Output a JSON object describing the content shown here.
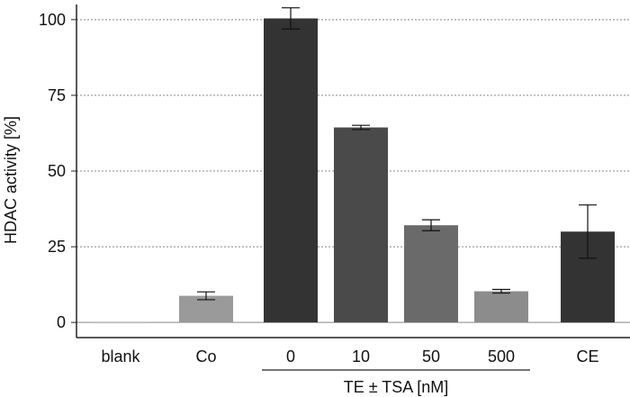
{
  "chart_data": {
    "type": "bar",
    "ylabel": "HDAC activity [%]",
    "ylim": [
      -5,
      105
    ],
    "yticks": [
      "0",
      "25",
      "50",
      "75",
      "100"
    ],
    "grid": "horizontal dotted",
    "categories": [
      "blank",
      "Co",
      "0",
      "10",
      "50",
      "500",
      "CE"
    ],
    "values": [
      0,
      8.8,
      100.4,
      64.4,
      32.1,
      10.3,
      30.0
    ],
    "errors": [
      0,
      1.3,
      3.5,
      0.7,
      1.8,
      0.6,
      8.8
    ],
    "bar_colors": [
      "#c8c8c8",
      "#9a9a9a",
      "#333333",
      "#4a4a4a",
      "#6a6a6a",
      "#8c8c8c",
      "#333333"
    ],
    "group_label": "TE ± TSA [nM]",
    "group_members": [
      "0",
      "10",
      "50",
      "500"
    ]
  }
}
